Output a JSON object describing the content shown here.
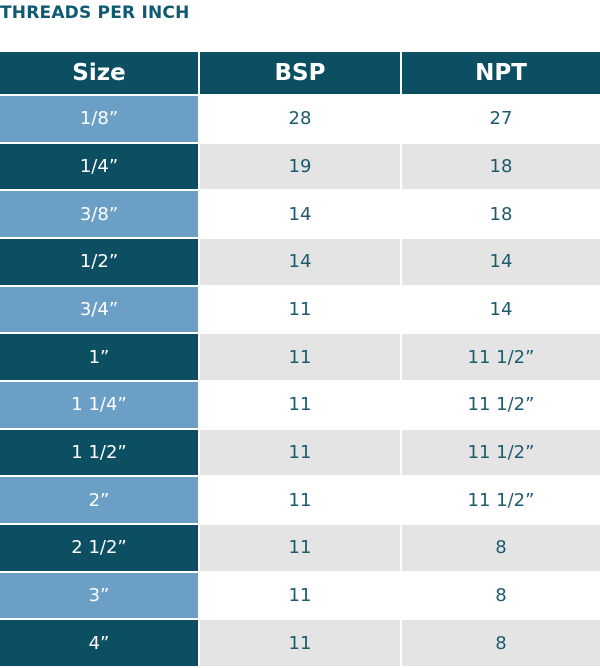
{
  "header": {
    "title": "THREADS PER INCH"
  },
  "table": {
    "columns": [
      "Size",
      "BSP",
      "NPT"
    ],
    "rows": [
      [
        "1/8”",
        28,
        27
      ],
      [
        "1/4”",
        19,
        18
      ],
      [
        "3/8”",
        14,
        18
      ],
      [
        "1/2”",
        14,
        14
      ],
      [
        "3/4”",
        11,
        14
      ],
      [
        "1”",
        11,
        "11 1/2”"
      ],
      [
        "1 1/4”",
        11,
        "11 1/2”"
      ],
      [
        "1 1/2”",
        11,
        "11 1/2”"
      ],
      [
        "2”",
        11,
        "11 1/2”"
      ],
      [
        "2 1/2”",
        11,
        8
      ],
      [
        "3”",
        11,
        8
      ],
      [
        "4”",
        11,
        8
      ]
    ]
  }
}
